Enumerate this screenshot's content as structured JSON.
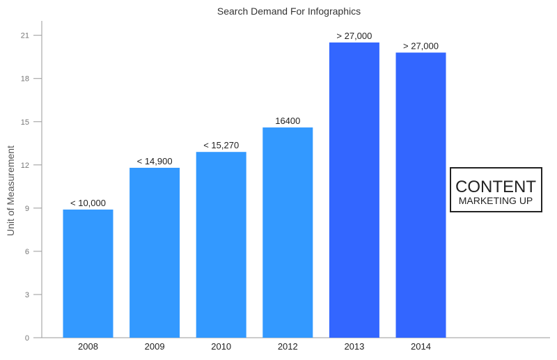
{
  "chart_data": {
    "type": "bar",
    "title": "Search Demand For Infographics",
    "xlabel": "",
    "ylabel": "Unit of Measurement",
    "categories": [
      "2008",
      "2009",
      "2010",
      "2012",
      "2013",
      "2014"
    ],
    "values": [
      8.9,
      11.8,
      12.9,
      14.6,
      20.5,
      19.8
    ],
    "data_labels": [
      "< 10,000",
      "< 14,900",
      "< 15,270",
      "16400",
      "> 27,000",
      "> 27,000"
    ],
    "bar_colors": [
      "#3399ff",
      "#3399ff",
      "#3399ff",
      "#3399ff",
      "#3366ff",
      "#3366ff"
    ],
    "ylim": [
      0,
      22
    ],
    "yticks": [
      0,
      3,
      6,
      9,
      12,
      15,
      18,
      21
    ],
    "grid": false,
    "legend": "none"
  },
  "brand": {
    "line1": "CONTENT",
    "line2": "MARKETING UP"
  },
  "colors": {
    "axis": "#999999",
    "text": "#222222"
  }
}
